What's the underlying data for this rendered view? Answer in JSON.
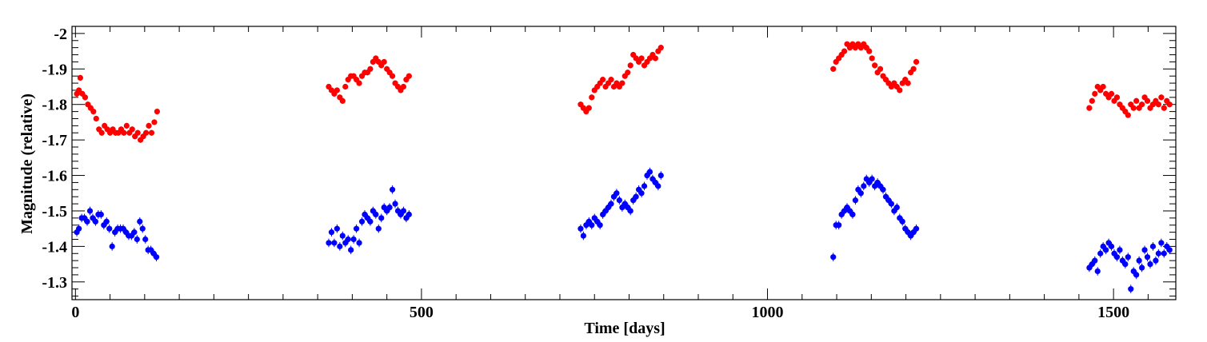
{
  "chart_data": {
    "type": "scatter",
    "title": "",
    "xlabel": "Time [days]",
    "ylabel": "Magnitude (relative)",
    "xlim": [
      -5,
      1590
    ],
    "ylim": [
      -1.25,
      -2.02
    ],
    "y_inverted": true,
    "x_major_ticks": [
      0,
      500,
      1000,
      1500
    ],
    "x_tick_labels": [
      "0",
      "500",
      "1000",
      "1500"
    ],
    "x_minor_step": 50,
    "y_major_ticks": [
      -1.3,
      -1.4,
      -1.5,
      -1.6,
      -1.7,
      -1.8,
      -1.9,
      -2.0
    ],
    "y_tick_labels": [
      "-1.3",
      "-1.4",
      "-1.5",
      "-1.6",
      "-1.7",
      "-1.8",
      "-1.9",
      "-2"
    ],
    "y_minor_step": 0.02,
    "grid": false,
    "error_bars": true,
    "series": [
      {
        "color": "#ff0000",
        "err": 0.008,
        "x": [
          2,
          5,
          7,
          10,
          14,
          18,
          22,
          26,
          30,
          34,
          38,
          42,
          46,
          50,
          54,
          58,
          62,
          66,
          70,
          74,
          78,
          82,
          86,
          90,
          94,
          98,
          102,
          106,
          110,
          114,
          118,
          366,
          370,
          374,
          378,
          382,
          386,
          390,
          394,
          398,
          402,
          406,
          410,
          414,
          418,
          422,
          426,
          430,
          434,
          438,
          442,
          446,
          450,
          454,
          458,
          462,
          466,
          470,
          474,
          478,
          482,
          730,
          734,
          738,
          742,
          746,
          750,
          754,
          758,
          762,
          766,
          770,
          774,
          778,
          782,
          786,
          790,
          794,
          798,
          802,
          806,
          810,
          814,
          818,
          822,
          826,
          830,
          834,
          838,
          842,
          846,
          1095,
          1099,
          1103,
          1107,
          1111,
          1115,
          1119,
          1123,
          1127,
          1131,
          1135,
          1139,
          1143,
          1147,
          1151,
          1155,
          1159,
          1163,
          1167,
          1171,
          1175,
          1179,
          1183,
          1187,
          1191,
          1195,
          1199,
          1203,
          1207,
          1211,
          1215,
          1465,
          1469,
          1473,
          1477,
          1481,
          1485,
          1489,
          1493,
          1497,
          1501,
          1505,
          1509,
          1513,
          1517,
          1521,
          1525,
          1529,
          1533,
          1537,
          1541,
          1545,
          1549,
          1553,
          1557,
          1561,
          1565,
          1569,
          1573,
          1577,
          1581
        ],
        "y": [
          -1.83,
          -1.84,
          -1.875,
          -1.83,
          -1.82,
          -1.8,
          -1.79,
          -1.78,
          -1.76,
          -1.73,
          -1.72,
          -1.74,
          -1.73,
          -1.72,
          -1.73,
          -1.72,
          -1.72,
          -1.73,
          -1.72,
          -1.74,
          -1.72,
          -1.73,
          -1.71,
          -1.72,
          -1.7,
          -1.71,
          -1.72,
          -1.74,
          -1.72,
          -1.75,
          -1.78,
          -1.85,
          -1.84,
          -1.83,
          -1.84,
          -1.82,
          -1.81,
          -1.85,
          -1.87,
          -1.88,
          -1.88,
          -1.87,
          -1.86,
          -1.88,
          -1.89,
          -1.89,
          -1.9,
          -1.92,
          -1.93,
          -1.92,
          -1.91,
          -1.92,
          -1.9,
          -1.89,
          -1.88,
          -1.86,
          -1.85,
          -1.84,
          -1.85,
          -1.87,
          -1.88,
          -1.8,
          -1.79,
          -1.78,
          -1.79,
          -1.82,
          -1.84,
          -1.85,
          -1.86,
          -1.87,
          -1.85,
          -1.86,
          -1.87,
          -1.85,
          -1.86,
          -1.85,
          -1.86,
          -1.88,
          -1.89,
          -1.91,
          -1.94,
          -1.93,
          -1.92,
          -1.93,
          -1.91,
          -1.92,
          -1.93,
          -1.94,
          -1.93,
          -1.95,
          -1.96,
          -1.9,
          -1.92,
          -1.93,
          -1.94,
          -1.95,
          -1.97,
          -1.96,
          -1.97,
          -1.96,
          -1.97,
          -1.96,
          -1.97,
          -1.96,
          -1.95,
          -1.93,
          -1.91,
          -1.89,
          -1.9,
          -1.88,
          -1.87,
          -1.86,
          -1.85,
          -1.86,
          -1.85,
          -1.84,
          -1.86,
          -1.87,
          -1.86,
          -1.89,
          -1.9,
          -1.92,
          -1.79,
          -1.81,
          -1.83,
          -1.85,
          -1.84,
          -1.85,
          -1.83,
          -1.82,
          -1.83,
          -1.81,
          -1.82,
          -1.8,
          -1.79,
          -1.78,
          -1.77,
          -1.8,
          -1.79,
          -1.81,
          -1.79,
          -1.8,
          -1.82,
          -1.81,
          -1.79,
          -1.8,
          -1.81,
          -1.8,
          -1.82,
          -1.79,
          -1.81,
          -1.8
        ]
      },
      {
        "color": "#0000ff",
        "err": 0.012,
        "x": [
          2,
          5,
          9,
          13,
          17,
          21,
          25,
          29,
          33,
          37,
          41,
          45,
          49,
          53,
          57,
          61,
          65,
          69,
          73,
          77,
          81,
          85,
          89,
          93,
          97,
          101,
          105,
          109,
          113,
          117,
          366,
          370,
          374,
          378,
          382,
          386,
          390,
          394,
          398,
          402,
          406,
          410,
          414,
          418,
          422,
          426,
          430,
          434,
          438,
          442,
          446,
          450,
          454,
          458,
          462,
          466,
          470,
          474,
          478,
          482,
          730,
          734,
          738,
          742,
          746,
          750,
          754,
          758,
          762,
          766,
          770,
          774,
          778,
          782,
          786,
          790,
          794,
          798,
          802,
          806,
          810,
          814,
          818,
          822,
          826,
          830,
          834,
          838,
          842,
          846,
          1095,
          1099,
          1103,
          1107,
          1111,
          1115,
          1119,
          1123,
          1127,
          1131,
          1135,
          1139,
          1143,
          1147,
          1151,
          1155,
          1159,
          1163,
          1167,
          1171,
          1175,
          1179,
          1183,
          1187,
          1191,
          1195,
          1199,
          1203,
          1207,
          1211,
          1215,
          1465,
          1469,
          1473,
          1477,
          1481,
          1485,
          1489,
          1493,
          1497,
          1501,
          1505,
          1509,
          1513,
          1517,
          1521,
          1525,
          1529,
          1533,
          1537,
          1541,
          1545,
          1549,
          1553,
          1557,
          1561,
          1565,
          1569,
          1573,
          1577,
          1581
        ],
        "y": [
          -1.44,
          -1.45,
          -1.48,
          -1.48,
          -1.47,
          -1.5,
          -1.48,
          -1.47,
          -1.49,
          -1.49,
          -1.46,
          -1.47,
          -1.45,
          -1.4,
          -1.44,
          -1.45,
          -1.45,
          -1.45,
          -1.44,
          -1.43,
          -1.43,
          -1.44,
          -1.42,
          -1.47,
          -1.45,
          -1.42,
          -1.39,
          -1.39,
          -1.38,
          -1.37,
          -1.41,
          -1.44,
          -1.41,
          -1.45,
          -1.4,
          -1.43,
          -1.41,
          -1.42,
          -1.39,
          -1.42,
          -1.45,
          -1.41,
          -1.47,
          -1.49,
          -1.48,
          -1.47,
          -1.5,
          -1.49,
          -1.45,
          -1.48,
          -1.51,
          -1.5,
          -1.51,
          -1.56,
          -1.52,
          -1.5,
          -1.49,
          -1.5,
          -1.48,
          -1.49,
          -1.45,
          -1.43,
          -1.46,
          -1.47,
          -1.46,
          -1.48,
          -1.47,
          -1.46,
          -1.49,
          -1.5,
          -1.51,
          -1.52,
          -1.54,
          -1.55,
          -1.53,
          -1.51,
          -1.52,
          -1.51,
          -1.5,
          -1.53,
          -1.54,
          -1.56,
          -1.55,
          -1.57,
          -1.6,
          -1.61,
          -1.59,
          -1.58,
          -1.57,
          -1.6,
          -1.37,
          -1.46,
          -1.46,
          -1.49,
          -1.5,
          -1.51,
          -1.5,
          -1.49,
          -1.53,
          -1.56,
          -1.55,
          -1.57,
          -1.59,
          -1.58,
          -1.59,
          -1.57,
          -1.58,
          -1.57,
          -1.56,
          -1.54,
          -1.53,
          -1.52,
          -1.5,
          -1.51,
          -1.48,
          -1.47,
          -1.45,
          -1.44,
          -1.43,
          -1.44,
          -1.45,
          -1.34,
          -1.35,
          -1.36,
          -1.33,
          -1.38,
          -1.4,
          -1.39,
          -1.41,
          -1.4,
          -1.38,
          -1.37,
          -1.39,
          -1.36,
          -1.35,
          -1.37,
          -1.28,
          -1.33,
          -1.32,
          -1.36,
          -1.34,
          -1.39,
          -1.37,
          -1.35,
          -1.4,
          -1.36,
          -1.38,
          -1.41,
          -1.38,
          -1.4,
          -1.39
        ]
      }
    ]
  }
}
